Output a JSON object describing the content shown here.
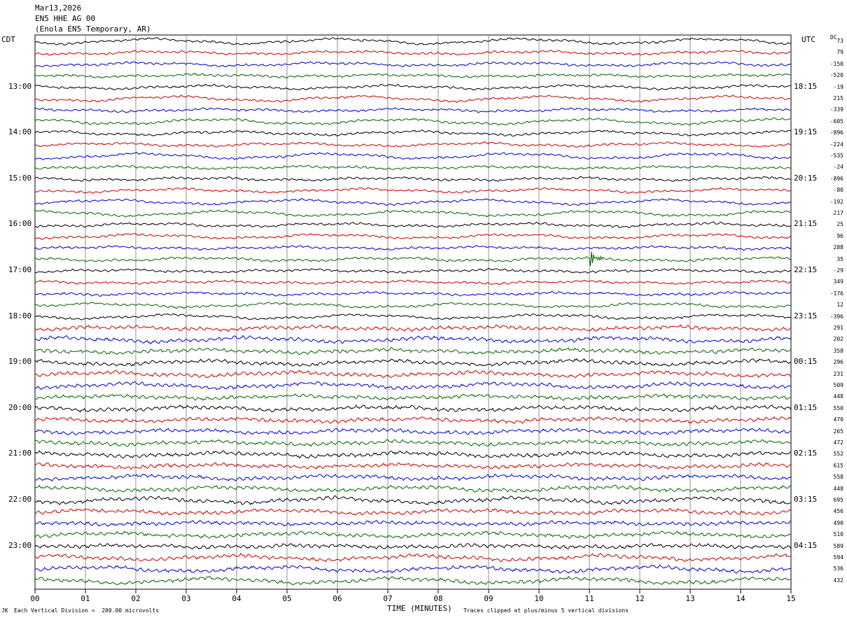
{
  "header": {
    "date": "Mar13,2026",
    "channel": "EN5 HHE AG 00",
    "station": "(Enola EN5 Temporary, AR)"
  },
  "left_zone": "CDT",
  "right_zone": "UTC",
  "dc_label": "DC",
  "chart_data": {
    "type": "line",
    "title": "",
    "xlabel": "TIME (MINUTES)",
    "xlim": [
      0,
      15
    ],
    "x_ticks": [
      "00",
      "01",
      "02",
      "03",
      "04",
      "05",
      "06",
      "07",
      "08",
      "09",
      "10",
      "11",
      "12",
      "13",
      "14",
      "15"
    ],
    "rows_per_hour": 4,
    "row_minutes": 15,
    "trace_colors": [
      "#000000",
      "#cc0000",
      "#0000cc",
      "#006600"
    ],
    "left_hour_labels": [
      "13:00",
      "14:00",
      "15:00",
      "16:00",
      "17:00",
      "18:00",
      "19:00",
      "20:00",
      "21:00",
      "22:00",
      "23:00"
    ],
    "right_hour_labels": [
      "18:15",
      "19:15",
      "20:15",
      "21:15",
      "22:15",
      "23:15",
      "00:15",
      "01:15",
      "02:15",
      "03:15",
      "04:15"
    ],
    "row_offsets": [
      "73",
      "79",
      "-150",
      "-520",
      "-19",
      "215",
      "-339",
      "-605",
      "-896",
      "-224",
      "-535",
      "-24",
      "-896",
      "-80",
      "-192",
      "217",
      "25",
      "96",
      "288",
      "35",
      "-29",
      "349",
      "-176",
      "12",
      "-396",
      "291",
      "202",
      "358",
      "296",
      "231",
      "509",
      "448",
      "550",
      "470",
      "265",
      "472",
      "552",
      "615",
      "558",
      "448",
      "695",
      "456",
      "490",
      "510",
      "589",
      "594",
      "536",
      "432"
    ],
    "events": [
      {
        "row": 19,
        "minute": 11.05,
        "note": "largest burst"
      }
    ]
  },
  "footer": {
    "scale": "Each Vertical Division =  200.00 microvolts",
    "clip": "Traces clipped at plus/minus 5 vertical divisions",
    "corner": "JK"
  }
}
